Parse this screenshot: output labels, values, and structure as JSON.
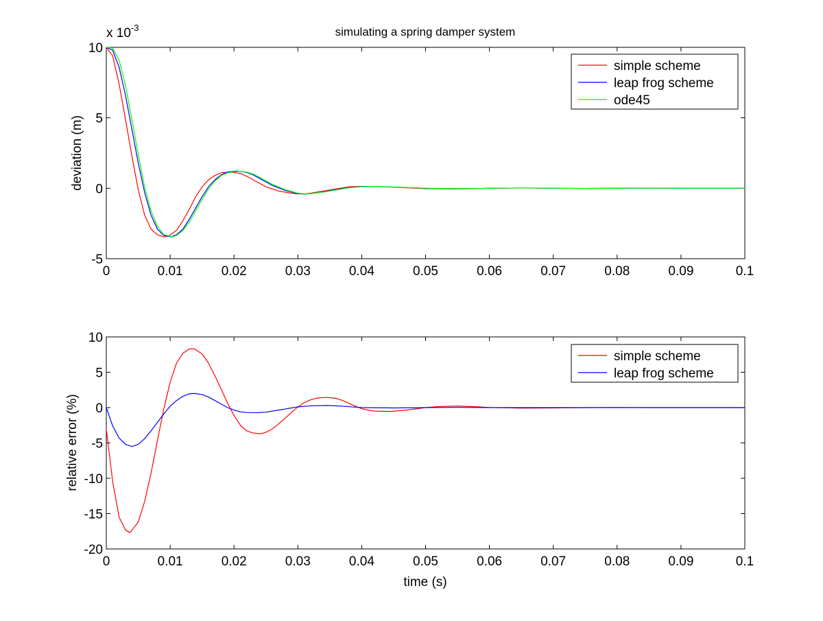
{
  "chart_data": [
    {
      "type": "line",
      "title": "simulating a spring damper system",
      "xlabel": "",
      "ylabel": "deviation (m)",
      "exponent_base": "x 10",
      "exponent_power": "-3",
      "xlim": [
        0,
        0.1
      ],
      "ylim": [
        -5,
        10
      ],
      "xticks": [
        "0",
        "0.01",
        "0.02",
        "0.03",
        "0.04",
        "0.05",
        "0.06",
        "0.07",
        "0.08",
        "0.09",
        "0.1"
      ],
      "yticks": [
        "-5",
        "0",
        "5",
        "10"
      ],
      "xtick_values": [
        0,
        0.01,
        0.02,
        0.03,
        0.04,
        0.05,
        0.06,
        0.07,
        0.08,
        0.09,
        0.1
      ],
      "ytick_values": [
        -5,
        0,
        5,
        10
      ],
      "grid": false,
      "legend_position": "top-right",
      "series": [
        {
          "name": "simple scheme",
          "color": "#ff0000",
          "x": [
            0,
            0.001,
            0.002,
            0.003,
            0.004,
            0.005,
            0.006,
            0.007,
            0.008,
            0.009,
            0.0097,
            0.011,
            0.012,
            0.013,
            0.014,
            0.015,
            0.016,
            0.017,
            0.018,
            0.0195,
            0.021,
            0.022,
            0.023,
            0.024,
            0.025,
            0.027,
            0.029,
            0.03,
            0.031,
            0.032,
            0.034,
            0.036,
            0.038,
            0.04,
            0.043,
            0.046,
            0.05,
            0.055,
            0.06,
            0.065,
            0.07,
            0.075,
            0.08,
            0.085,
            0.09,
            0.095,
            0.1
          ],
          "y": [
            10,
            9.4,
            7.4,
            4.9,
            2.3,
            -0.1,
            -1.9,
            -2.9,
            -3.3,
            -3.45,
            -3.4,
            -3.0,
            -2.3,
            -1.5,
            -0.6,
            0.1,
            0.6,
            0.9,
            1.1,
            1.15,
            1.05,
            0.85,
            0.6,
            0.35,
            0.1,
            -0.2,
            -0.35,
            -0.4,
            -0.4,
            -0.35,
            -0.2,
            -0.05,
            0.1,
            0.13,
            0.12,
            0.05,
            -0.03,
            -0.05,
            0.0,
            0.02,
            0.0,
            -0.01,
            0.0,
            0.01,
            0.0,
            0.0,
            0.0
          ]
        },
        {
          "name": "leap frog scheme",
          "color": "#0000ff",
          "x": [
            0,
            0.001,
            0.002,
            0.003,
            0.004,
            0.005,
            0.006,
            0.007,
            0.008,
            0.009,
            0.0102,
            0.011,
            0.012,
            0.013,
            0.014,
            0.015,
            0.016,
            0.017,
            0.018,
            0.019,
            0.0205,
            0.022,
            0.023,
            0.024,
            0.025,
            0.026,
            0.028,
            0.03,
            0.031,
            0.032,
            0.034,
            0.036,
            0.038,
            0.04,
            0.042,
            0.045,
            0.05,
            0.055,
            0.06,
            0.065,
            0.07,
            0.075,
            0.08,
            0.085,
            0.09,
            0.095,
            0.1
          ],
          "y": [
            10,
            9.8,
            8.6,
            6.6,
            4.2,
            1.8,
            -0.3,
            -1.9,
            -2.9,
            -3.35,
            -3.45,
            -3.3,
            -2.9,
            -2.2,
            -1.4,
            -0.6,
            0.1,
            0.6,
            0.95,
            1.15,
            1.22,
            1.12,
            0.95,
            0.7,
            0.45,
            0.2,
            -0.15,
            -0.38,
            -0.42,
            -0.38,
            -0.25,
            -0.1,
            0.05,
            0.12,
            0.13,
            0.08,
            0.0,
            -0.04,
            0.0,
            0.02,
            0.0,
            -0.01,
            0.0,
            0.01,
            0.0,
            0.0,
            0.0
          ]
        },
        {
          "name": "ode45",
          "color": "#00ff00",
          "x": [
            0,
            0.001,
            0.002,
            0.003,
            0.004,
            0.005,
            0.006,
            0.007,
            0.008,
            0.009,
            0.0104,
            0.011,
            0.012,
            0.013,
            0.014,
            0.015,
            0.016,
            0.017,
            0.018,
            0.019,
            0.0207,
            0.022,
            0.023,
            0.024,
            0.025,
            0.026,
            0.028,
            0.03,
            0.031,
            0.032,
            0.034,
            0.036,
            0.038,
            0.04,
            0.042,
            0.045,
            0.05,
            0.055,
            0.06,
            0.065,
            0.07,
            0.075,
            0.08,
            0.085,
            0.09,
            0.095,
            0.1
          ],
          "y": [
            10,
            9.95,
            9.1,
            7.3,
            4.9,
            2.4,
            0.1,
            -1.6,
            -2.7,
            -3.3,
            -3.45,
            -3.35,
            -3.0,
            -2.4,
            -1.6,
            -0.8,
            -0.05,
            0.5,
            0.9,
            1.1,
            1.2,
            1.15,
            1.0,
            0.78,
            0.52,
            0.28,
            -0.1,
            -0.35,
            -0.4,
            -0.38,
            -0.27,
            -0.12,
            0.03,
            0.11,
            0.13,
            0.09,
            0.0,
            -0.03,
            0.0,
            0.02,
            0.0,
            -0.01,
            0.0,
            0.01,
            0.0,
            0.0,
            0.0
          ]
        }
      ]
    },
    {
      "type": "line",
      "title": "",
      "xlabel": "time (s)",
      "ylabel": "relative error (%)",
      "xlim": [
        0,
        0.1
      ],
      "ylim": [
        -20,
        10
      ],
      "xticks": [
        "0",
        "0.01",
        "0.02",
        "0.03",
        "0.04",
        "0.05",
        "0.06",
        "0.07",
        "0.08",
        "0.09",
        "0.1"
      ],
      "yticks": [
        "-20",
        "-15",
        "-10",
        "-5",
        "0",
        "5",
        "10"
      ],
      "xtick_values": [
        0,
        0.01,
        0.02,
        0.03,
        0.04,
        0.05,
        0.06,
        0.07,
        0.08,
        0.09,
        0.1
      ],
      "ytick_values": [
        -20,
        -15,
        -10,
        -5,
        0,
        5,
        10
      ],
      "grid": false,
      "legend_position": "top-right",
      "series": [
        {
          "name": "simple scheme",
          "color": "#ff0000",
          "x": [
            0,
            0.001,
            0.002,
            0.003,
            0.0037,
            0.005,
            0.006,
            0.007,
            0.008,
            0.009,
            0.01,
            0.011,
            0.012,
            0.013,
            0.0138,
            0.015,
            0.016,
            0.017,
            0.018,
            0.019,
            0.02,
            0.021,
            0.022,
            0.023,
            0.0242,
            0.025,
            0.026,
            0.027,
            0.028,
            0.029,
            0.03,
            0.031,
            0.032,
            0.033,
            0.0345,
            0.036,
            0.037,
            0.038,
            0.039,
            0.04,
            0.041,
            0.042,
            0.0445,
            0.047,
            0.05,
            0.052,
            0.055,
            0.058,
            0.06,
            0.065,
            0.07,
            0.075,
            0.08,
            0.085,
            0.09,
            0.1
          ],
          "y": [
            -3,
            -10.5,
            -15.5,
            -17.3,
            -17.7,
            -16.2,
            -13.3,
            -9.3,
            -4.7,
            -0.2,
            3.6,
            6.3,
            7.7,
            8.3,
            8.3,
            7.6,
            6.3,
            4.5,
            2.6,
            0.6,
            -1.1,
            -2.5,
            -3.3,
            -3.6,
            -3.7,
            -3.5,
            -3.0,
            -2.3,
            -1.5,
            -0.7,
            0.1,
            0.7,
            1.1,
            1.35,
            1.45,
            1.3,
            1.0,
            0.6,
            0.2,
            -0.15,
            -0.35,
            -0.5,
            -0.55,
            -0.35,
            0.0,
            0.15,
            0.22,
            0.12,
            0.02,
            -0.08,
            -0.05,
            0.0,
            0.02,
            0.0,
            0.0,
            0.0
          ]
        },
        {
          "name": "leap frog scheme",
          "color": "#0000ff",
          "x": [
            0,
            0.001,
            0.002,
            0.003,
            0.004,
            0.005,
            0.006,
            0.007,
            0.008,
            0.009,
            0.01,
            0.011,
            0.012,
            0.013,
            0.0138,
            0.015,
            0.016,
            0.017,
            0.018,
            0.019,
            0.02,
            0.021,
            0.022,
            0.0235,
            0.025,
            0.026,
            0.027,
            0.028,
            0.029,
            0.03,
            0.032,
            0.0345,
            0.037,
            0.04,
            0.045,
            0.05,
            0.055,
            0.06,
            0.07,
            0.08,
            0.09,
            0.1
          ],
          "y": [
            0,
            -2.6,
            -4.3,
            -5.2,
            -5.5,
            -5.2,
            -4.4,
            -3.3,
            -2.1,
            -0.9,
            0.2,
            1.0,
            1.6,
            1.95,
            2.0,
            1.85,
            1.5,
            1.0,
            0.5,
            0.0,
            -0.35,
            -0.6,
            -0.7,
            -0.72,
            -0.65,
            -0.5,
            -0.35,
            -0.2,
            -0.05,
            0.1,
            0.25,
            0.3,
            0.2,
            0.0,
            -0.05,
            0.0,
            0.03,
            0.0,
            0.0,
            0.0,
            0.0,
            0.0
          ]
        }
      ]
    }
  ]
}
